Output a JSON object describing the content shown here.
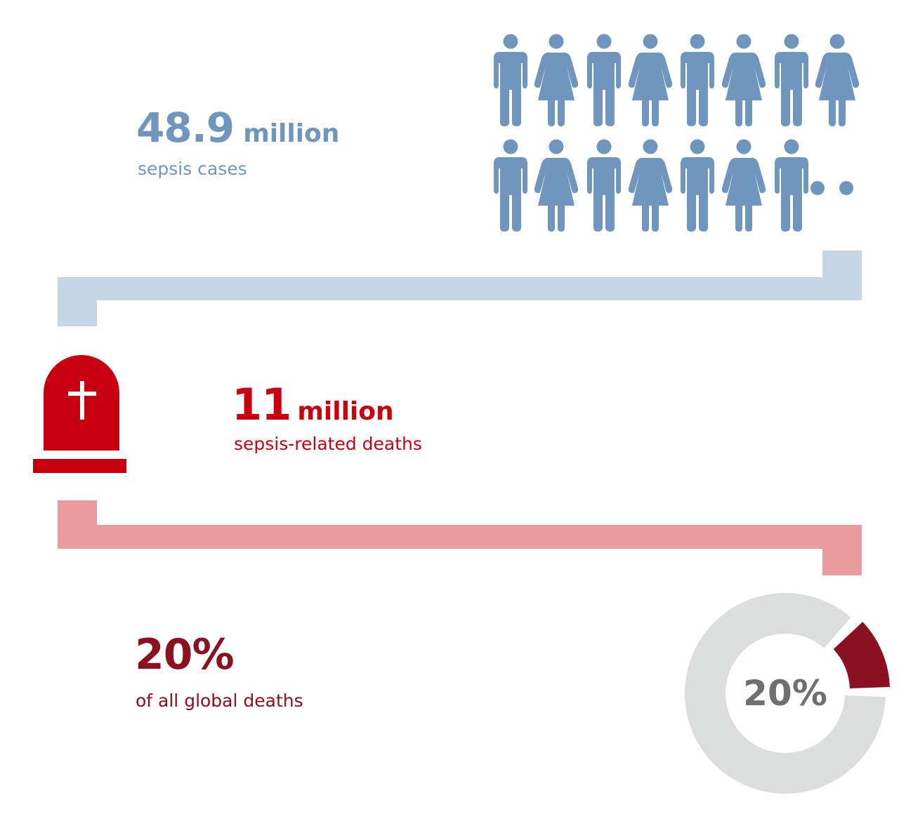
{
  "colors": {
    "cases": "#7096bd",
    "deaths": "#c8000f",
    "global": "#8b1020",
    "cases_bracket": "#c7d6e5",
    "deaths_bracket": "#e99b9e",
    "donut_rest": "#dcdddd",
    "donut_label": "#6f6f6f"
  },
  "cases": {
    "value": "48.9",
    "unit": "million",
    "label": "sepsis cases",
    "icon": "people-icons-ellipsis"
  },
  "deaths": {
    "value": "11",
    "unit": "million",
    "label": "sepsis-related deaths",
    "icon": "tombstone-icon"
  },
  "global": {
    "value": "20%",
    "label": "of all global deaths"
  },
  "donut": {
    "percent": 20,
    "center_label": "20%"
  }
}
